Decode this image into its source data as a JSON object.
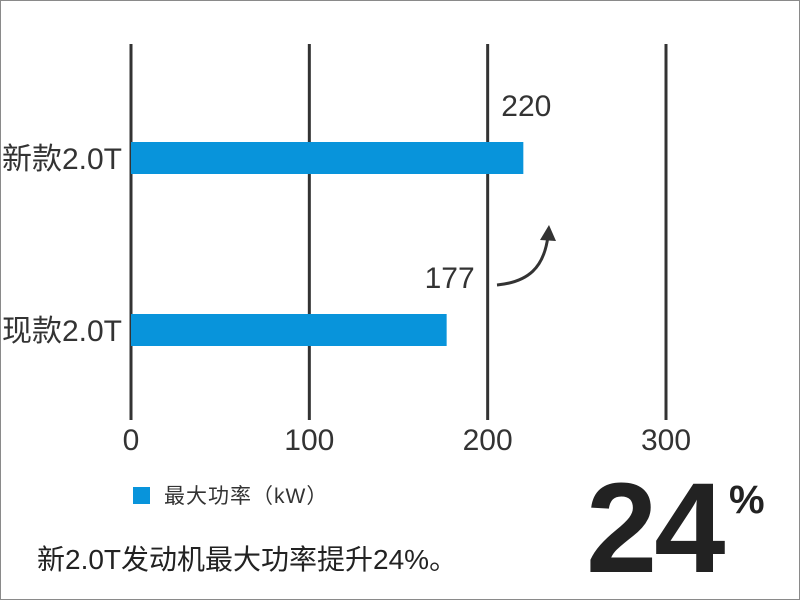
{
  "chart_data": {
    "type": "bar",
    "orientation": "horizontal",
    "categories": [
      "新款2.0T",
      "现款2.0T"
    ],
    "series": [
      {
        "name": "最大功率（kW）",
        "values": [
          220,
          177
        ]
      }
    ],
    "xlim": [
      0,
      300
    ],
    "x_ticks": [
      "0",
      "100",
      "200",
      "300"
    ],
    "grid": true,
    "legend": {
      "placement": "bottom-left",
      "label": "最大功率（kW）"
    },
    "annotation": "curved up arrow from 177 bar toward 220 bar"
  },
  "colors": {
    "bar": "#0894db",
    "grid": "#333333",
    "text": "#333333"
  },
  "caption": "新2.0T发动机最大功率提升24%。",
  "highlight": {
    "number": "24",
    "unit": "%"
  }
}
